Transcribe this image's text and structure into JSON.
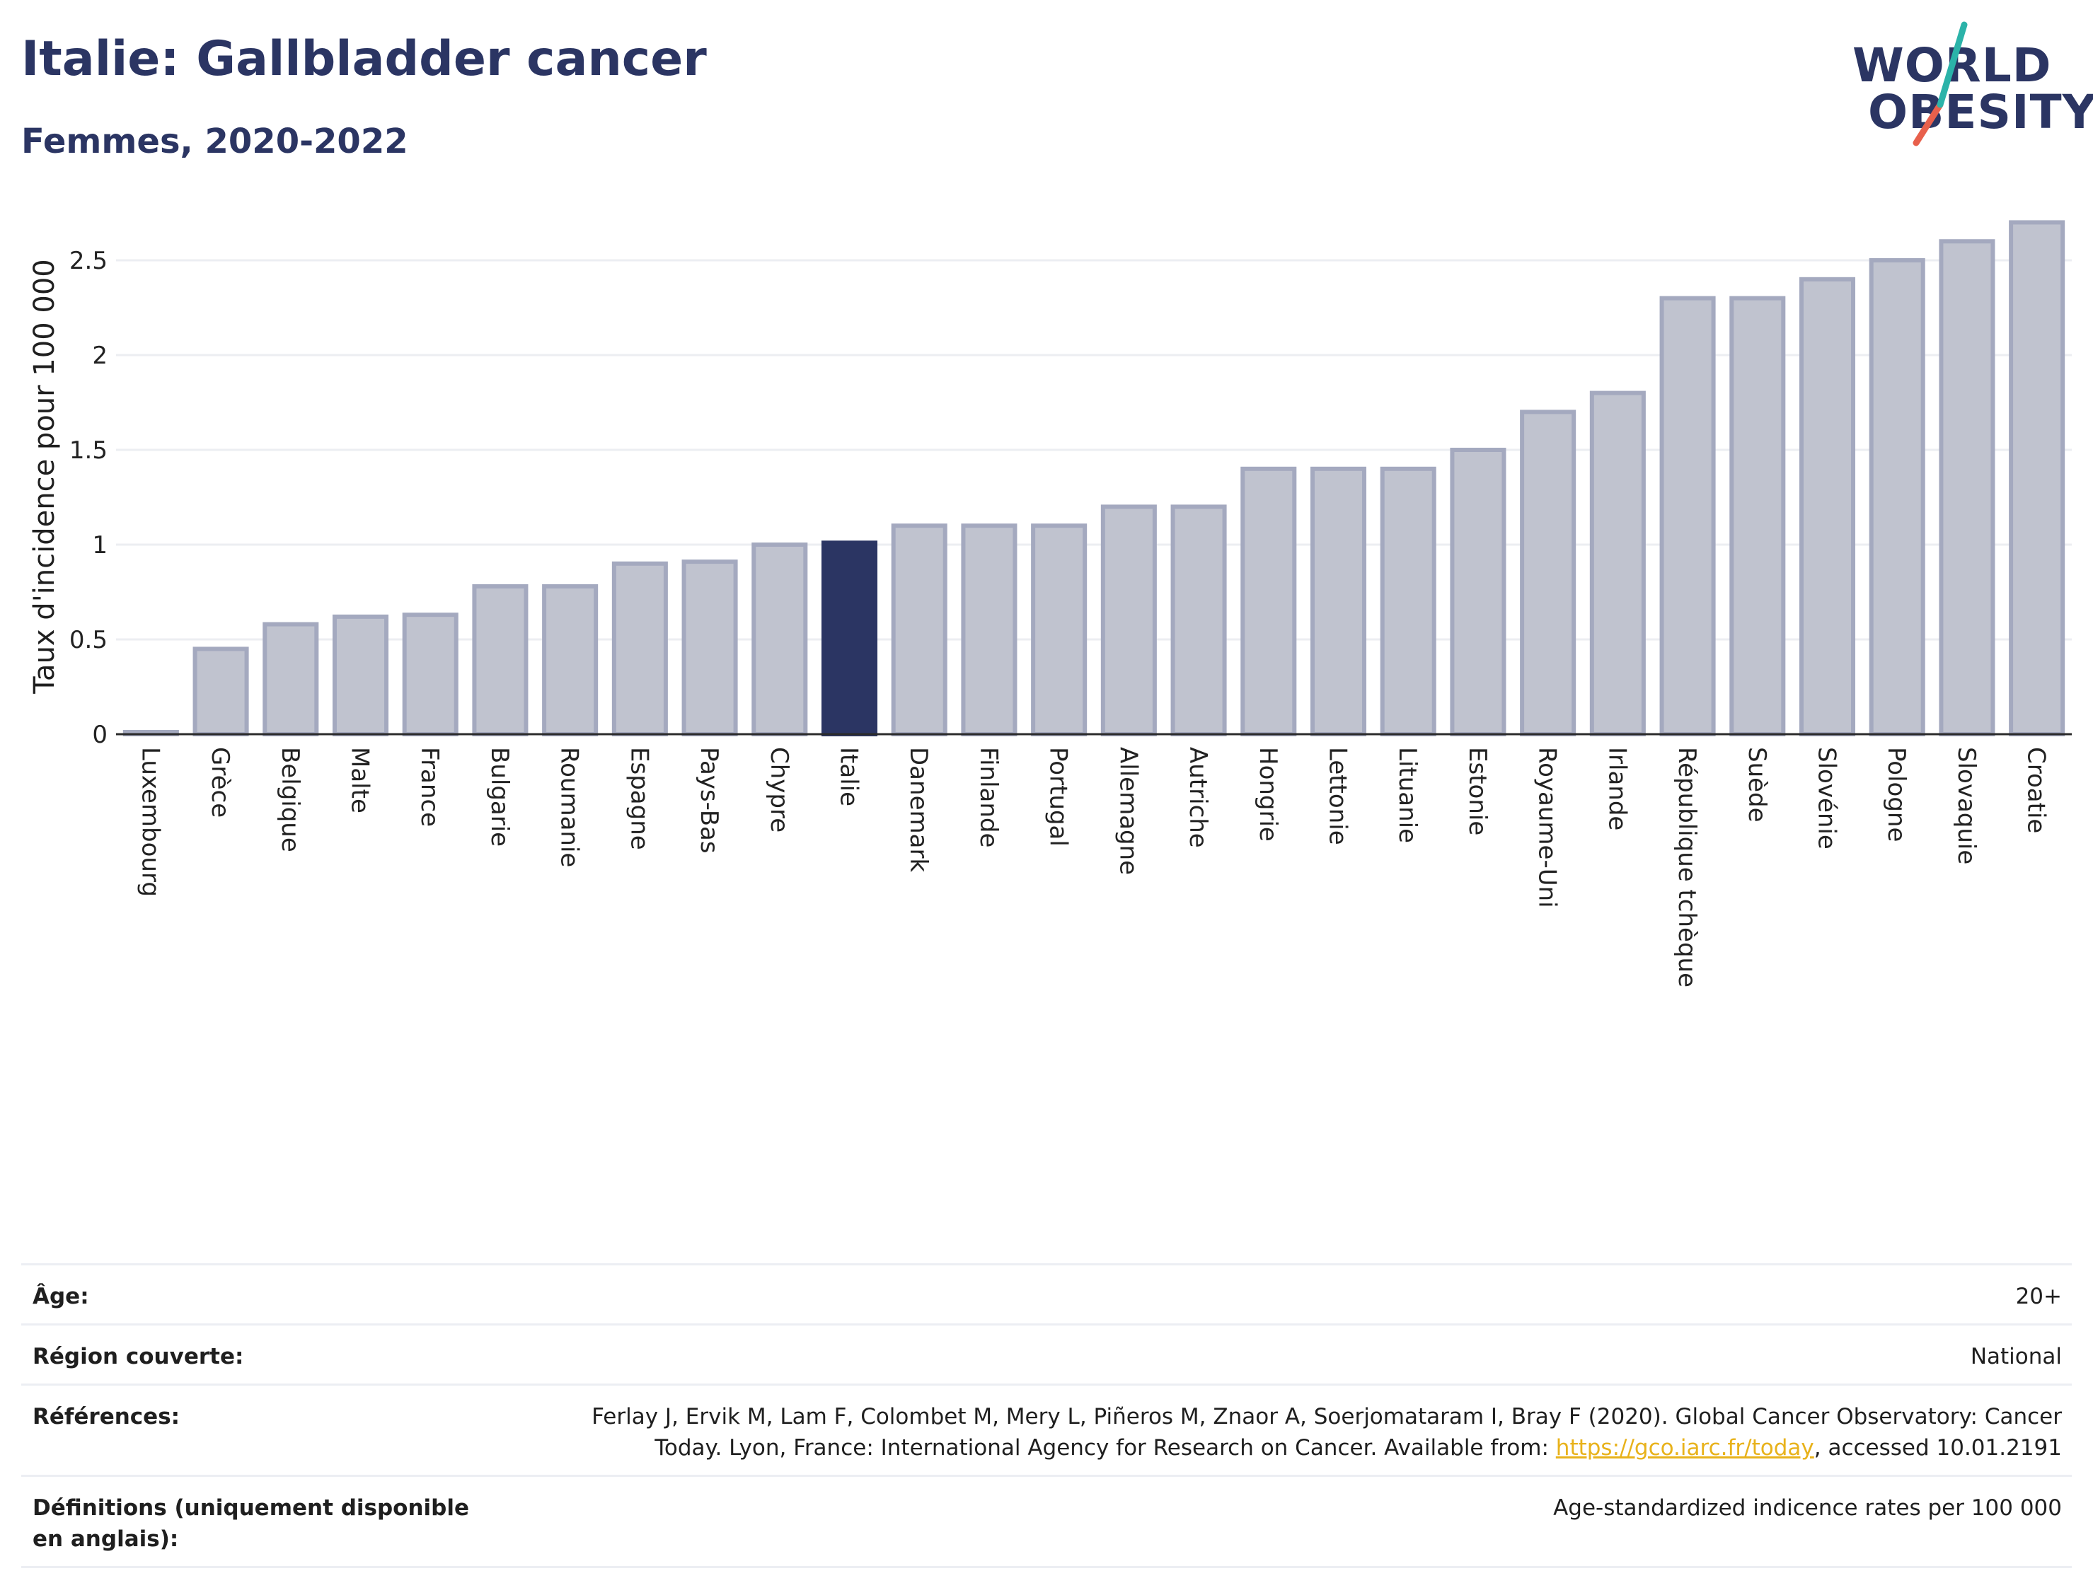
{
  "header": {
    "title": "Italie: Gallbladder cancer",
    "subtitle": "Femmes, 2020-2022"
  },
  "logo": {
    "line1": "WORLD",
    "line2": "OBESITY",
    "accent_colors": [
      "#2bb3a9",
      "#e8604c"
    ]
  },
  "colors": {
    "highlight_bar": "#2b3563",
    "bar_fill": "#c0c3cf",
    "bar_stroke": "#a4a9bf",
    "text_dark": "#2b3563",
    "link": "#e8b21b"
  },
  "chart_data": {
    "type": "bar",
    "ylabel": "Taux d'incidence pour 100 000",
    "xlabel": "",
    "ylim": [
      0,
      2.72
    ],
    "yticks": [
      0,
      0.5,
      1,
      1.5,
      2,
      2.5
    ],
    "ytick_labels": [
      "0",
      "0.5",
      "1",
      "1.5",
      "2",
      "2.5"
    ],
    "grid": true,
    "highlight": "Italie",
    "categories": [
      "Luxembourg",
      "Grèce",
      "Belgique",
      "Malte",
      "France",
      "Bulgarie",
      "Roumanie",
      "Espagne",
      "Pays-Bas",
      "Chypre",
      "Italie",
      "Danemark",
      "Finlande",
      "Portugal",
      "Allemagne",
      "Autriche",
      "Hongrie",
      "Lettonie",
      "Lituanie",
      "Estonie",
      "Royaume-Uni",
      "Irlande",
      "République tchèque",
      "Suède",
      "Slovénie",
      "Pologne",
      "Slovaquie",
      "Croatie"
    ],
    "values": [
      0.01,
      0.45,
      0.58,
      0.62,
      0.63,
      0.78,
      0.78,
      0.9,
      0.91,
      1.0,
      1.01,
      1.1,
      1.1,
      1.1,
      1.2,
      1.2,
      1.4,
      1.4,
      1.4,
      1.5,
      1.7,
      1.8,
      2.3,
      2.3,
      2.4,
      2.5,
      2.6,
      2.7
    ]
  },
  "info": {
    "age_label": "Âge:",
    "age_value": "20+",
    "region_label": "Région couverte:",
    "region_value": "National",
    "references_label": "Références:",
    "references_text_1": "Ferlay J, Ervik M, Lam F, Colombet M, Mery L, Piñeros M, Znaor A, Soerjomataram I, Bray F (2020). Global Cancer Observatory: Cancer Today. Lyon, France: International Agency for Research on Cancer. Available from: ",
    "references_link": "https://gco.iarc.fr/today",
    "references_text_2": ", accessed 10.01.2191",
    "definitions_label": "Définitions (uniquement disponible en anglais):",
    "definitions_value": "Age-standardized indicence rates per 100 000"
  }
}
